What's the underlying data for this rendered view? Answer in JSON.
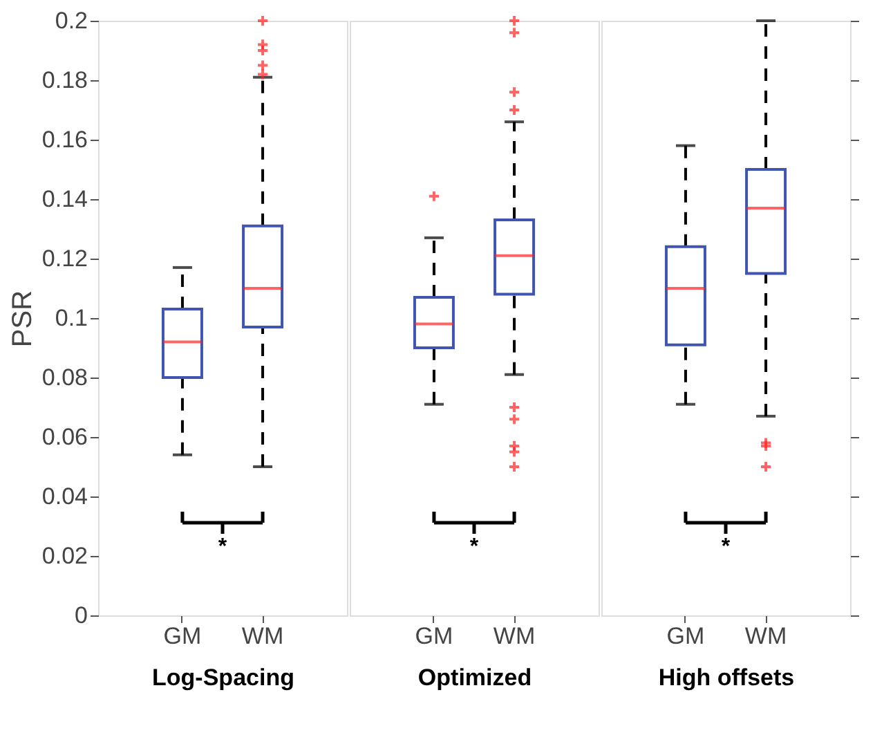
{
  "chart_data": [
    {
      "type": "box",
      "xlabel": "Log-Spacing",
      "ylabel": "PSR",
      "categories": [
        "GM",
        "WM"
      ],
      "color": "#3f55b0",
      "marker": "cross",
      "ylim": [
        0,
        0.2
      ],
      "yticks": [
        0,
        0.02,
        0.04,
        0.06,
        0.08,
        0.1,
        0.12,
        0.14,
        0.16,
        0.18,
        0.2
      ],
      "grid": false,
      "annotations": [
        "*"
      ],
      "boxes": [
        {
          "low": 0.054,
          "q1": 0.08,
          "median": 0.092,
          "q3": 0.103,
          "high": 0.117
        },
        {
          "low": 0.05,
          "q1": 0.097,
          "median": 0.11,
          "q3": 0.131,
          "high": 0.181,
          "outliers": [
            0.2,
            0.192,
            0.19,
            0.185,
            0.182
          ]
        }
      ]
    },
    {
      "type": "box",
      "xlabel": "Optimized",
      "categories": [
        "GM",
        "WM"
      ],
      "color": "#3f55b0",
      "marker": "cross",
      "ylim": [
        0,
        0.2
      ],
      "yticks": [
        0,
        0.02,
        0.04,
        0.06,
        0.08,
        0.1,
        0.12,
        0.14,
        0.16,
        0.18,
        0.2
      ],
      "tick_labels": "x",
      "grid": false,
      "annotations": [
        "*"
      ],
      "boxes": [
        {
          "low": 0.071,
          "q1": 0.09,
          "median": 0.098,
          "q3": 0.107,
          "high": 0.127,
          "outliers": [
            0.141
          ]
        },
        {
          "low": 0.081,
          "q1": 0.108,
          "median": 0.121,
          "q3": 0.133,
          "high": 0.166,
          "outliers": [
            0.2,
            0.196,
            0.176,
            0.17,
            0.07,
            0.066,
            0.057,
            0.055,
            0.05
          ]
        }
      ]
    },
    {
      "type": "box",
      "xlabel": "High offsets",
      "categories": [
        "GM",
        "WM"
      ],
      "color": "#3f55b0",
      "marker": "cross",
      "ylim": [
        0,
        0.2
      ],
      "yticks": [
        0,
        0.02,
        0.04,
        0.06,
        0.08,
        0.1,
        0.12,
        0.14,
        0.16,
        0.18,
        0.2
      ],
      "tick_labels": "x",
      "grid": false,
      "annotations": [
        "*"
      ],
      "boxes": [
        {
          "low": 0.071,
          "q1": 0.091,
          "median": 0.11,
          "q3": 0.124,
          "high": 0.158
        },
        {
          "low": 0.067,
          "q1": 0.115,
          "median": 0.137,
          "q3": 0.15,
          "high": 0.2,
          "outliers": [
            0.058,
            0.057,
            0.05
          ]
        }
      ]
    }
  ]
}
